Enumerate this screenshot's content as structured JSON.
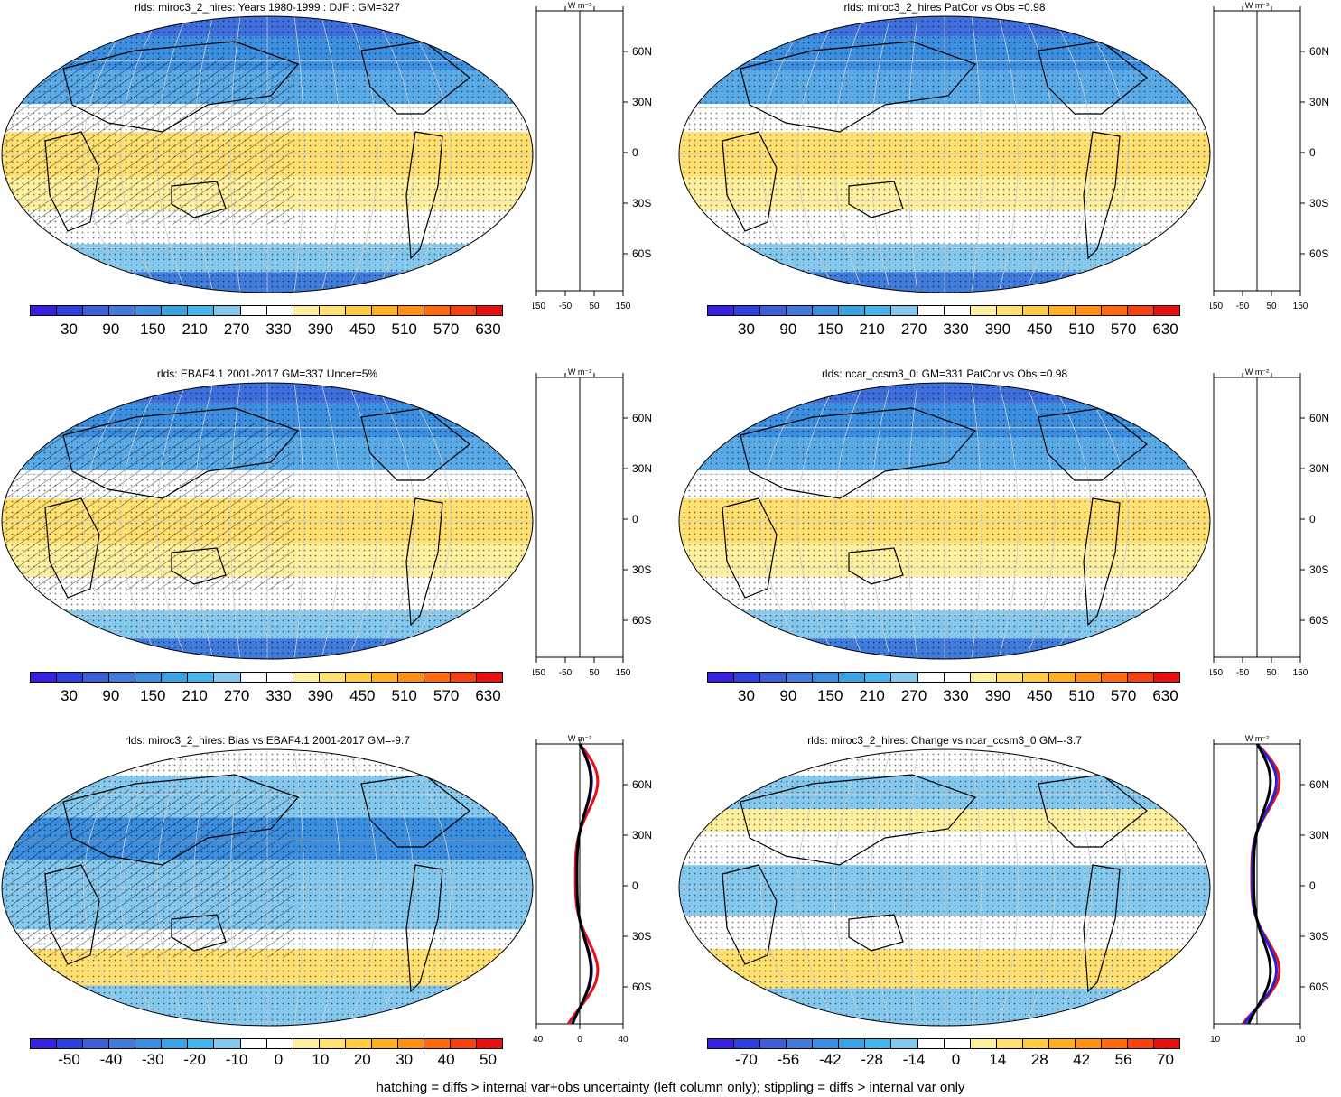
{
  "panels": [
    {
      "title": "rlds: miroc3_2_hires: Years 1980-1999 : DJF : GM=327",
      "scale": "abs",
      "profile": "none"
    },
    {
      "title": "rlds: miroc3_2_hires PatCor vs Obs =0.98",
      "scale": "abs",
      "profile": "none"
    },
    {
      "title": "rlds: EBAF4.1 2001-2017 GM=337 Uncer=5%",
      "scale": "abs",
      "profile": "none"
    },
    {
      "title": "rlds: ncar_ccsm3_0: GM=331 PatCor vs Obs =0.98",
      "scale": "abs",
      "profile": "none"
    },
    {
      "title": "rlds: miroc3_2_hires: Bias vs EBAF4.1 2001-2017 GM=-9.7",
      "scale": "bias",
      "profile": "bias"
    },
    {
      "title": "rlds: miroc3_2_hires: Change vs ncar_ccsm3_0 GM=-3.7",
      "scale": "change",
      "profile": "change"
    }
  ],
  "colorbars": {
    "abs": {
      "labels": [
        "30",
        "90",
        "150",
        "210",
        "270",
        "330",
        "390",
        "450",
        "510",
        "570",
        "630"
      ]
    },
    "bias": {
      "labels": [
        "-50",
        "-40",
        "-30",
        "-20",
        "-10",
        "0",
        "10",
        "20",
        "30",
        "40",
        "50"
      ]
    },
    "change": {
      "labels": [
        "-70",
        "-56",
        "-42",
        "-28",
        "-14",
        "0",
        "14",
        "28",
        "42",
        "56",
        "70"
      ]
    }
  },
  "colors": [
    "#3a20e0",
    "#2e40e0",
    "#3d5fd8",
    "#3f7cdc",
    "#3c8fe0",
    "#3aa3e8",
    "#46b4ec",
    "#85c8ee",
    "#ffffff",
    "#ffffff",
    "#fff0a0",
    "#ffe070",
    "#ffcc40",
    "#ffb020",
    "#ff9010",
    "#ff6a10",
    "#f84010",
    "#e81010"
  ],
  "profile_axis": {
    "unit": "W m⁻²",
    "lat_labels": [
      "60N",
      "30N",
      "0",
      "30S",
      "60S"
    ],
    "abs_ticks": [
      "-150",
      "-50",
      "50",
      "150"
    ],
    "bias_ticks": [
      "-40",
      "0",
      "40"
    ],
    "change_ticks": [
      "-10",
      "10"
    ]
  },
  "footer": "hatching = diffs > internal var+obs uncertainty (left column only); stippling = diffs > internal var only"
}
